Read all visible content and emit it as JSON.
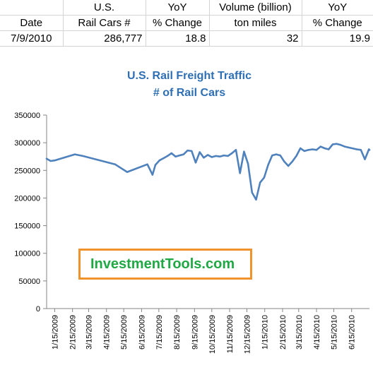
{
  "sheet": {
    "header_row1": [
      "",
      "U.S.",
      "YoY",
      "Volume (billion)",
      "YoY"
    ],
    "header_row2": [
      "Date",
      "Rail Cars #",
      "% Change",
      "ton miles",
      "% Change"
    ],
    "data_row": [
      "7/9/2010",
      "286,777",
      "18.8",
      "32",
      "19.9"
    ]
  },
  "chart_data": {
    "type": "line",
    "title": "U.S. Rail Freight Traffic",
    "subtitle": "# of Rail Cars",
    "xlabel": "",
    "ylabel": "",
    "ylim": [
      0,
      350000
    ],
    "y_ticks": [
      "0",
      "50000",
      "100000",
      "150000",
      "200000",
      "250000",
      "300000",
      "350000"
    ],
    "x_ticks": [
      "1/15/2009",
      "2/15/2009",
      "3/15/2009",
      "4/15/2009",
      "5/15/2009",
      "6/15/2009",
      "7/15/2009",
      "8/15/2009",
      "9/15/2009",
      "10/15/2009",
      "11/15/2009",
      "12/15/2009",
      "1/15/2010",
      "2/15/2010",
      "3/15/2010",
      "4/15/2010",
      "5/15/2010",
      "6/15/2010"
    ],
    "x_range": [
      "2009-01-01",
      "2010-07-16"
    ],
    "grid": false,
    "line_color": "#4f81bd",
    "series": [
      {
        "values": [
          [
            "2009-01-01",
            271000
          ],
          [
            "2009-01-08",
            267000
          ],
          [
            "2009-01-15",
            268000
          ],
          [
            "2009-02-19",
            279000
          ],
          [
            "2009-03-05",
            276000
          ],
          [
            "2009-04-30",
            261000
          ],
          [
            "2009-05-21",
            247000
          ],
          [
            "2009-06-25",
            261000
          ],
          [
            "2009-07-04",
            242000
          ],
          [
            "2009-07-09",
            260000
          ],
          [
            "2009-07-16",
            268000
          ],
          [
            "2009-07-23",
            272000
          ],
          [
            "2009-07-30",
            276000
          ],
          [
            "2009-08-06",
            281000
          ],
          [
            "2009-08-13",
            275000
          ],
          [
            "2009-08-20",
            277000
          ],
          [
            "2009-08-27",
            279000
          ],
          [
            "2009-09-03",
            286000
          ],
          [
            "2009-09-10",
            285000
          ],
          [
            "2009-09-17",
            264000
          ],
          [
            "2009-09-24",
            283000
          ],
          [
            "2009-10-01",
            273000
          ],
          [
            "2009-10-08",
            278000
          ],
          [
            "2009-10-15",
            274000
          ],
          [
            "2009-10-22",
            276000
          ],
          [
            "2009-10-29",
            275000
          ],
          [
            "2009-11-05",
            277000
          ],
          [
            "2009-11-12",
            276000
          ],
          [
            "2009-11-19",
            281000
          ],
          [
            "2009-11-26",
            287000
          ],
          [
            "2009-12-03",
            245000
          ],
          [
            "2009-12-10",
            284000
          ],
          [
            "2009-12-17",
            262000
          ],
          [
            "2009-12-24",
            210000
          ],
          [
            "2009-12-31",
            197000
          ],
          [
            "2010-01-07",
            228000
          ],
          [
            "2010-01-14",
            237000
          ],
          [
            "2010-01-21",
            260000
          ],
          [
            "2010-01-28",
            277000
          ],
          [
            "2010-02-04",
            279000
          ],
          [
            "2010-02-11",
            277000
          ],
          [
            "2010-02-18",
            266000
          ],
          [
            "2010-02-25",
            258000
          ],
          [
            "2010-03-04",
            266000
          ],
          [
            "2010-03-11",
            276000
          ],
          [
            "2010-03-18",
            290000
          ],
          [
            "2010-03-25",
            285000
          ],
          [
            "2010-04-01",
            287000
          ],
          [
            "2010-04-08",
            288000
          ],
          [
            "2010-04-15",
            287000
          ],
          [
            "2010-04-22",
            293000
          ],
          [
            "2010-04-29",
            290000
          ],
          [
            "2010-05-06",
            288000
          ],
          [
            "2010-05-13",
            297000
          ],
          [
            "2010-05-20",
            298000
          ],
          [
            "2010-05-27",
            296000
          ],
          [
            "2010-06-03",
            293000
          ],
          [
            "2010-06-24",
            288000
          ],
          [
            "2010-07-01",
            287000
          ],
          [
            "2010-07-08",
            270000
          ],
          [
            "2010-07-15",
            288000
          ],
          [
            "2010-07-16",
            287000
          ]
        ]
      }
    ]
  },
  "watermark": {
    "text": "InvestmentTools.com",
    "border_color": "#f0932c",
    "text_color": "#20a845"
  }
}
